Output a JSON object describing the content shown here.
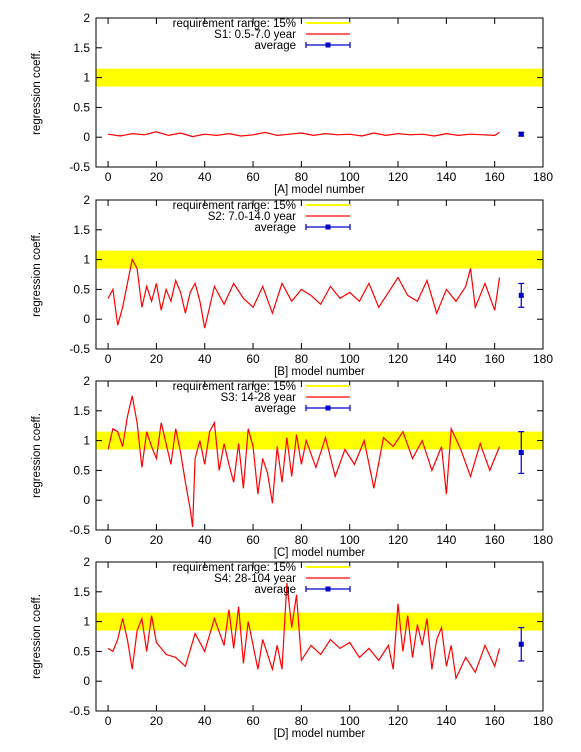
{
  "figure": {
    "panels_label": "regression coefficient panels"
  },
  "chart_data": [
    {
      "type": "line",
      "panel": "A",
      "xlabel": "[A] model number",
      "ylabel": "regression coeff.",
      "xlim": [
        -5,
        180
      ],
      "ylim": [
        -0.5,
        2
      ],
      "xticks": [
        "0",
        "20",
        "40",
        "60",
        "80",
        "100",
        "120",
        "140",
        "160",
        "180"
      ],
      "yticks": [
        "-0.5",
        "0",
        "0.5",
        "1",
        "1.5",
        "2"
      ],
      "requirement_band": {
        "label": "requirement range: 15%",
        "ymin": 0.85,
        "ymax": 1.15,
        "color": "#ffff00"
      },
      "series": [
        {
          "name": "S1: 0.5-7.0 year",
          "color": "#ff0000",
          "x": [
            0,
            5,
            10,
            15,
            20,
            25,
            30,
            35,
            40,
            45,
            50,
            55,
            60,
            65,
            70,
            75,
            80,
            85,
            90,
            95,
            100,
            105,
            110,
            115,
            120,
            125,
            130,
            135,
            140,
            145,
            150,
            155,
            160,
            162
          ],
          "y": [
            0.05,
            0.02,
            0.06,
            0.04,
            0.09,
            0.03,
            0.07,
            0.01,
            0.05,
            0.03,
            0.06,
            0.02,
            0.04,
            0.08,
            0.03,
            0.05,
            0.07,
            0.03,
            0.06,
            0.04,
            0.05,
            0.02,
            0.07,
            0.03,
            0.06,
            0.04,
            0.05,
            0.02,
            0.06,
            0.03,
            0.05,
            0.04,
            0.03,
            0.08
          ]
        }
      ],
      "average": {
        "label": "average",
        "x": 171,
        "y": 0.05,
        "err": 0.03,
        "color": "#0000cc"
      }
    },
    {
      "type": "line",
      "panel": "B",
      "xlabel": "[B]  model number",
      "ylabel": "regression coeff.",
      "xlim": [
        -5,
        180
      ],
      "ylim": [
        -0.5,
        2
      ],
      "xticks": [
        "0",
        "20",
        "40",
        "60",
        "80",
        "100",
        "120",
        "140",
        "160",
        "180"
      ],
      "yticks": [
        "-0.5",
        "0",
        "0.5",
        "1",
        "1.5",
        "2"
      ],
      "requirement_band": {
        "label": "requirement range: 15%",
        "ymin": 0.85,
        "ymax": 1.15,
        "color": "#ffff00"
      },
      "series": [
        {
          "name": "S2: 7.0-14.0 year",
          "color": "#ff0000",
          "x": [
            0,
            2,
            4,
            6,
            8,
            10,
            12,
            14,
            16,
            18,
            20,
            22,
            24,
            26,
            28,
            30,
            32,
            34,
            36,
            38,
            40,
            44,
            48,
            52,
            56,
            60,
            64,
            68,
            72,
            76,
            80,
            84,
            88,
            92,
            96,
            100,
            104,
            108,
            112,
            116,
            120,
            124,
            128,
            132,
            136,
            140,
            144,
            148,
            150,
            152,
            156,
            160,
            162
          ],
          "y": [
            0.35,
            0.5,
            -0.1,
            0.2,
            0.6,
            1.0,
            0.85,
            0.2,
            0.55,
            0.3,
            0.6,
            0.15,
            0.5,
            0.3,
            0.65,
            0.45,
            0.1,
            0.45,
            0.6,
            0.3,
            -0.15,
            0.55,
            0.25,
            0.6,
            0.35,
            0.2,
            0.55,
            0.1,
            0.6,
            0.3,
            0.5,
            0.4,
            0.25,
            0.55,
            0.35,
            0.45,
            0.3,
            0.6,
            0.2,
            0.45,
            0.7,
            0.4,
            0.3,
            0.65,
            0.1,
            0.5,
            0.3,
            0.55,
            0.85,
            0.2,
            0.6,
            0.15,
            0.7
          ]
        }
      ],
      "average": {
        "label": "average",
        "x": 171,
        "y": 0.4,
        "err": 0.2,
        "color": "#0000cc"
      }
    },
    {
      "type": "line",
      "panel": "C",
      "xlabel": "[C]  model number",
      "ylabel": "regression coeff.",
      "xlim": [
        -5,
        180
      ],
      "ylim": [
        -0.5,
        2
      ],
      "xticks": [
        "0",
        "20",
        "40",
        "60",
        "80",
        "100",
        "120",
        "140",
        "160",
        "180"
      ],
      "yticks": [
        "-0.5",
        "0",
        "0.5",
        "1",
        "1.5",
        "2"
      ],
      "requirement_band": {
        "label": "requirement range: 15%",
        "ymin": 0.85,
        "ymax": 1.15,
        "color": "#ffff00"
      },
      "series": [
        {
          "name": "S3: 14-28 year",
          "color": "#ff0000",
          "x": [
            0,
            2,
            4,
            6,
            8,
            10,
            12,
            14,
            16,
            18,
            20,
            22,
            24,
            26,
            28,
            30,
            32,
            34,
            35,
            36,
            38,
            40,
            42,
            44,
            46,
            48,
            50,
            52,
            54,
            56,
            58,
            60,
            62,
            64,
            66,
            68,
            70,
            72,
            74,
            76,
            78,
            80,
            82,
            86,
            90,
            94,
            98,
            102,
            106,
            110,
            114,
            118,
            122,
            126,
            130,
            134,
            138,
            140,
            142,
            146,
            150,
            154,
            158,
            162
          ],
          "y": [
            0.85,
            1.2,
            1.15,
            0.9,
            1.4,
            1.75,
            1.3,
            0.55,
            1.15,
            0.9,
            0.7,
            1.3,
            0.95,
            0.6,
            1.2,
            0.8,
            0.3,
            -0.15,
            -0.45,
            0.7,
            1.0,
            0.6,
            1.15,
            1.3,
            0.5,
            0.95,
            0.6,
            0.3,
            0.95,
            0.2,
            1.2,
            0.9,
            0.1,
            0.7,
            0.45,
            -0.05,
            0.9,
            0.3,
            1.05,
            0.4,
            1.1,
            0.6,
            1.0,
            0.55,
            1.05,
            0.4,
            0.85,
            0.6,
            1.0,
            0.2,
            1.05,
            0.9,
            1.15,
            0.7,
            1.0,
            0.5,
            0.9,
            0.1,
            1.2,
            0.85,
            0.4,
            0.95,
            0.5,
            0.9
          ]
        }
      ],
      "average": {
        "label": "average",
        "x": 171,
        "y": 0.8,
        "err": 0.35,
        "color": "#0000cc"
      }
    },
    {
      "type": "line",
      "panel": "D",
      "xlabel": "[D]  model number",
      "ylabel": "regression coeff.",
      "xlim": [
        -5,
        180
      ],
      "ylim": [
        -0.5,
        2
      ],
      "xticks": [
        "0",
        "20",
        "40",
        "60",
        "80",
        "100",
        "120",
        "140",
        "160",
        "180"
      ],
      "yticks": [
        "-0.5",
        "0",
        "0.5",
        "1",
        "1.5",
        "2"
      ],
      "requirement_band": {
        "label": "requirement range: 15%",
        "ymin": 0.85,
        "ymax": 1.15,
        "color": "#ffff00"
      },
      "series": [
        {
          "name": "S4: 28-104 year",
          "color": "#ff0000",
          "x": [
            0,
            2,
            4,
            6,
            8,
            10,
            12,
            14,
            16,
            18,
            20,
            24,
            28,
            32,
            36,
            40,
            44,
            48,
            50,
            52,
            54,
            56,
            58,
            60,
            62,
            64,
            66,
            68,
            70,
            72,
            74,
            76,
            78,
            80,
            84,
            88,
            92,
            96,
            100,
            104,
            108,
            112,
            116,
            118,
            120,
            122,
            124,
            126,
            128,
            130,
            132,
            134,
            136,
            138,
            140,
            142,
            144,
            148,
            152,
            156,
            160,
            162
          ],
          "y": [
            0.55,
            0.5,
            0.7,
            1.05,
            0.7,
            0.2,
            0.85,
            1.05,
            0.5,
            1.1,
            0.65,
            0.45,
            0.4,
            0.25,
            0.8,
            0.5,
            1.05,
            0.6,
            1.2,
            0.55,
            1.25,
            0.3,
            1.0,
            0.6,
            0.2,
            0.7,
            0.45,
            0.2,
            0.6,
            0.2,
            1.65,
            0.9,
            1.45,
            0.35,
            0.6,
            0.45,
            0.7,
            0.55,
            0.65,
            0.4,
            0.55,
            0.35,
            0.6,
            0.2,
            1.3,
            0.5,
            1.1,
            0.4,
            0.95,
            0.6,
            1.05,
            0.2,
            0.7,
            0.9,
            0.25,
            0.6,
            0.05,
            0.4,
            0.15,
            0.6,
            0.25,
            0.55
          ]
        }
      ],
      "average": {
        "label": "average",
        "x": 171,
        "y": 0.62,
        "err": 0.28,
        "color": "#0000cc"
      }
    }
  ]
}
